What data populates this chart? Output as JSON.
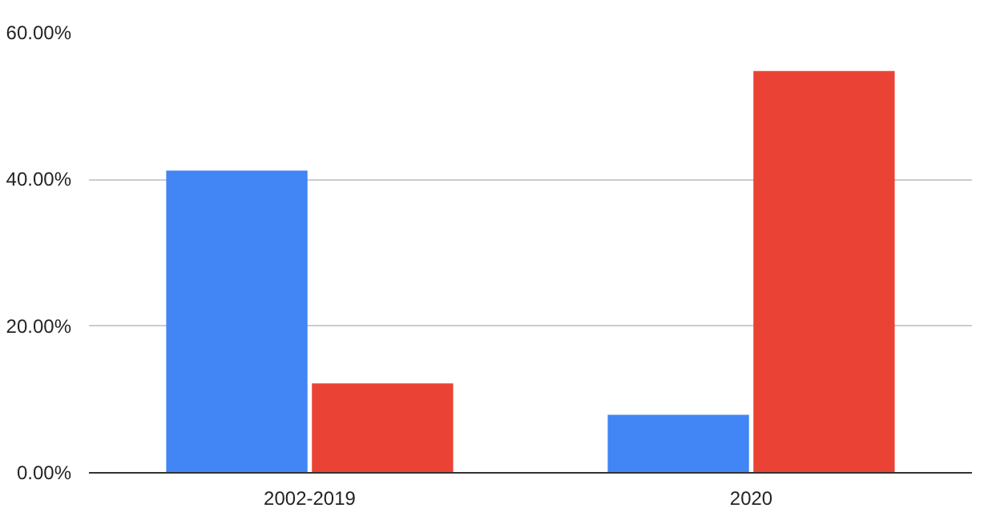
{
  "chart_data": {
    "type": "bar",
    "categories": [
      "2002-2019",
      "2020"
    ],
    "series": [
      {
        "color": "#4285f4",
        "values": [
          41.2,
          7.9
        ]
      },
      {
        "color": "#ea4335",
        "values": [
          12.2,
          54.8
        ]
      }
    ],
    "ylim": [
      0,
      60
    ],
    "yticks": [
      {
        "value": 0,
        "label": "0.00%"
      },
      {
        "value": 20,
        "label": "20.00%"
      },
      {
        "value": 40,
        "label": "40.00%"
      },
      {
        "value": 60,
        "label": "60.00%"
      }
    ],
    "grid": "y"
  }
}
